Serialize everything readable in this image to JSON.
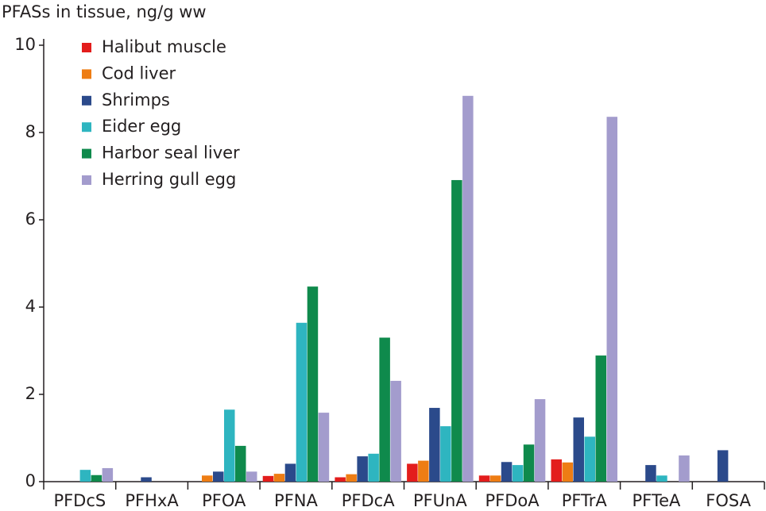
{
  "chart_data": {
    "type": "bar",
    "y_axis_title": "PFASs in tissue, ng/g ww",
    "categories": [
      "PFDcS",
      "PFHxA",
      "PFOA",
      "PFNA",
      "PFDcA",
      "PFUnA",
      "PFDoA",
      "PFTrA",
      "PFTeA",
      "FOSA"
    ],
    "series": [
      {
        "name": "Halibut muscle",
        "color": "#e31d1c",
        "values": [
          null,
          null,
          null,
          0.13,
          0.1,
          0.41,
          0.14,
          0.51,
          null,
          null
        ]
      },
      {
        "name": "Cod liver",
        "color": "#ee7d14",
        "values": [
          null,
          null,
          0.14,
          0.18,
          0.17,
          0.48,
          0.14,
          0.44,
          null,
          null
        ]
      },
      {
        "name": "Shrimps",
        "color": "#2b4a8b",
        "values": [
          null,
          0.1,
          0.23,
          0.41,
          0.58,
          1.69,
          0.45,
          1.47,
          0.38,
          0.72
        ]
      },
      {
        "name": "Eider egg",
        "color": "#2eb5c0",
        "values": [
          0.27,
          null,
          1.65,
          3.64,
          0.64,
          1.27,
          0.38,
          1.03,
          0.14,
          null
        ]
      },
      {
        "name": "Harbor seal liver",
        "color": "#0f8a4c",
        "values": [
          0.15,
          null,
          0.82,
          4.47,
          3.3,
          6.91,
          0.85,
          2.89,
          null,
          null
        ]
      },
      {
        "name": "Herring gull egg",
        "color": "#a39ccd",
        "values": [
          0.31,
          null,
          0.23,
          1.58,
          2.31,
          8.84,
          1.89,
          8.36,
          0.6,
          null
        ]
      }
    ],
    "ylim": [
      0,
      10
    ],
    "yticks": [
      0,
      2,
      4,
      6,
      8,
      10
    ],
    "grid": false,
    "legend": "upper left"
  }
}
